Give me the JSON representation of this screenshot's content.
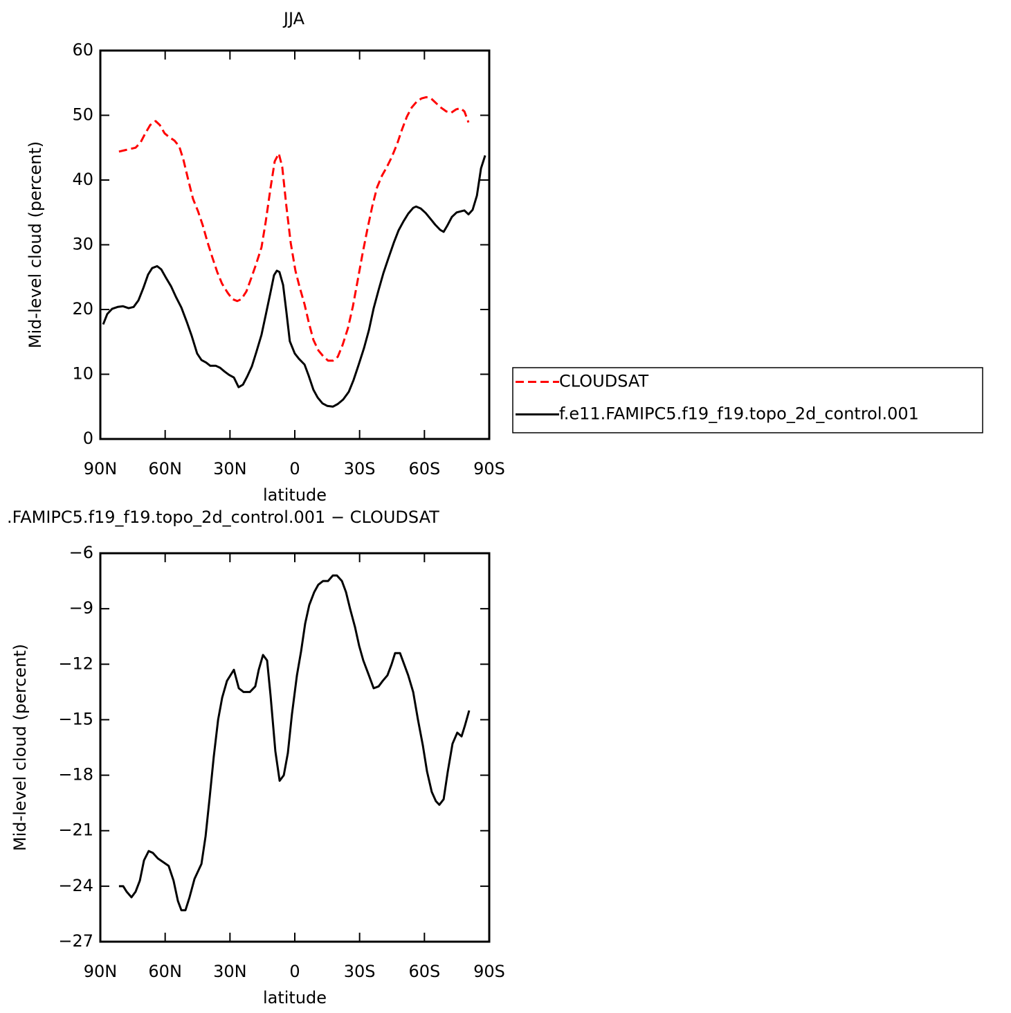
{
  "chart_data": [
    {
      "type": "line",
      "title": "JJA",
      "xlabel": "latitude",
      "ylabel": "Mid-level cloud (percent)",
      "xlim": [
        90,
        -90
      ],
      "ylim": [
        0,
        60
      ],
      "xticks": [
        {
          "value": 90,
          "label": "90N"
        },
        {
          "value": 60,
          "label": "60N"
        },
        {
          "value": 30,
          "label": "30N"
        },
        0,
        {
          "value": -30,
          "label": "30S"
        },
        {
          "value": -60,
          "label": "60S"
        },
        {
          "value": -90,
          "label": "90S"
        }
      ],
      "yticks": [
        0,
        10,
        20,
        30,
        40,
        50,
        60
      ],
      "legend": "right",
      "series": [
        {
          "name": "CLOUDSAT",
          "color": "#ff0000",
          "style": "dashed",
          "x": [
            81.4,
            78.8,
            76.2,
            73.7,
            71.4,
            69.2,
            66.9,
            64.4,
            62.5,
            60.2,
            58.0,
            55.7,
            53.5,
            51.6,
            49.3,
            47.1,
            44.8,
            42.6,
            40.4,
            38.2,
            35.9,
            33.7,
            31.1,
            28.9,
            26.6,
            24.7,
            22.4,
            20.2,
            17.9,
            15.4,
            13.5,
            11.2,
            9.3,
            7.4,
            5.8,
            3.9,
            1.9,
            -0.3,
            -2.2,
            -4.5,
            -6.4,
            -8.6,
            -10.9,
            -13.1,
            -15.4,
            -17.6,
            -19.9,
            -22.1,
            -24.6,
            -26.9,
            -29.1,
            -31.3,
            -33.6,
            -35.9,
            -38.1,
            -40.4,
            -42.6,
            -44.8,
            -47.4,
            -49.6,
            -51.9,
            -54.1,
            -56.4,
            -58.6,
            -60.9,
            -63.1,
            -65.3,
            -67.6,
            -70.1,
            -72.4,
            -74.6,
            -76.6,
            -78.5,
            -80.4
          ],
          "values": [
            44.4,
            44.6,
            44.8,
            45.0,
            45.8,
            47.2,
            48.5,
            49.1,
            48.5,
            47.2,
            46.6,
            46.1,
            45.2,
            43.2,
            40.0,
            37.1,
            35.2,
            33.0,
            30.4,
            28.1,
            25.8,
            24.0,
            22.6,
            21.6,
            21.3,
            21.6,
            22.8,
            24.8,
            27.0,
            29.6,
            33.5,
            38.8,
            42.9,
            44.1,
            42.0,
            36.0,
            30.3,
            26.0,
            23.5,
            20.8,
            18.1,
            15.3,
            13.7,
            12.8,
            12.1,
            12.1,
            12.7,
            14.5,
            17.1,
            20.5,
            24.5,
            28.5,
            32.4,
            36.0,
            38.9,
            40.7,
            42.0,
            43.5,
            45.6,
            47.8,
            49.8,
            51.2,
            52.1,
            52.6,
            52.8,
            52.6,
            51.9,
            51.2,
            50.6,
            50.4,
            50.9,
            51.1,
            50.6,
            48.9
          ]
        },
        {
          "name": "f.e11.FAMIPC5.f19_f19.topo_2d_control.001",
          "color": "#000000",
          "style": "solid",
          "x": [
            88.7,
            86.8,
            84.6,
            82.0,
            79.5,
            76.9,
            74.6,
            72.4,
            70.1,
            67.9,
            66.0,
            63.7,
            61.8,
            59.6,
            57.3,
            55.1,
            52.5,
            50.0,
            47.7,
            45.2,
            43.2,
            41.0,
            39.1,
            36.5,
            34.6,
            32.4,
            30.4,
            28.2,
            26.0,
            24.0,
            22.1,
            19.9,
            17.9,
            15.4,
            13.5,
            11.2,
            9.6,
            8.3,
            7.1,
            5.4,
            3.9,
            2.3,
            0.0,
            -1.9,
            -4.5,
            -6.4,
            -8.6,
            -10.6,
            -12.8,
            -15.1,
            -17.6,
            -19.9,
            -22.4,
            -25.0,
            -27.2,
            -29.5,
            -32.0,
            -34.3,
            -36.5,
            -38.8,
            -41.0,
            -43.2,
            -45.8,
            -48.0,
            -50.3,
            -52.5,
            -54.8,
            -56.1,
            -58.3,
            -60.6,
            -62.8,
            -65.0,
            -67.3,
            -68.9,
            -70.5,
            -72.7,
            -74.9,
            -77.2,
            -78.5,
            -80.4,
            -82.3,
            -84.3,
            -86.2,
            -88.1
          ],
          "values": [
            17.7,
            19.3,
            20.1,
            20.4,
            20.5,
            20.2,
            20.4,
            21.4,
            23.3,
            25.4,
            26.4,
            26.7,
            26.2,
            24.9,
            23.6,
            22.0,
            20.3,
            18.1,
            15.9,
            13.2,
            12.2,
            11.8,
            11.3,
            11.3,
            11.0,
            10.4,
            9.9,
            9.5,
            8.0,
            8.4,
            9.6,
            11.2,
            13.3,
            16.1,
            19.1,
            22.7,
            25.3,
            26.0,
            25.8,
            23.8,
            19.7,
            15.1,
            13.2,
            12.4,
            11.5,
            9.8,
            7.6,
            6.4,
            5.5,
            5.1,
            5.0,
            5.4,
            6.1,
            7.3,
            9.1,
            11.4,
            14.0,
            16.8,
            20.2,
            23.0,
            25.6,
            27.8,
            30.3,
            32.2,
            33.6,
            34.8,
            35.7,
            35.9,
            35.6,
            34.9,
            34.0,
            33.1,
            32.3,
            32.0,
            32.9,
            34.3,
            35.0,
            35.2,
            35.3,
            34.7,
            35.4,
            37.6,
            41.8,
            43.8
          ]
        }
      ]
    },
    {
      "type": "line",
      "title": ".FAMIPC5.f19_f19.topo_2d_control.001 − CLOUDSAT",
      "xlabel": "latitude",
      "ylabel": "Mid-level cloud (percent)",
      "xlim": [
        90,
        -90
      ],
      "ylim": [
        -27,
        -6
      ],
      "xticks": [
        {
          "value": 90,
          "label": "90N"
        },
        {
          "value": 60,
          "label": "60N"
        },
        {
          "value": 30,
          "label": "30N"
        },
        0,
        {
          "value": -30,
          "label": "30S"
        },
        {
          "value": -60,
          "label": "60S"
        },
        {
          "value": -90,
          "label": "90S"
        }
      ],
      "yticks": [
        {
          "value": -27,
          "label": "−27"
        },
        {
          "value": -24,
          "label": "−24"
        },
        {
          "value": -21,
          "label": "−21"
        },
        {
          "value": -18,
          "label": "−18"
        },
        {
          "value": -15,
          "label": "−15"
        },
        {
          "value": -12,
          "label": "−12"
        },
        {
          "value": -9,
          "label": "−9"
        },
        {
          "value": -6,
          "label": "−6"
        }
      ],
      "series": [
        {
          "color": "#000000",
          "style": "solid",
          "x": [
            81.4,
            79.4,
            77.8,
            75.6,
            73.7,
            71.7,
            69.8,
            67.6,
            65.7,
            63.4,
            60.9,
            58.4,
            56.1,
            54.1,
            52.5,
            50.6,
            48.7,
            46.4,
            43.2,
            41.3,
            39.4,
            37.5,
            35.5,
            33.6,
            31.4,
            28.2,
            25.9,
            23.7,
            20.8,
            18.3,
            16.7,
            14.7,
            12.8,
            11.2,
            9.0,
            7.0,
            5.1,
            3.2,
            1.3,
            -1.0,
            -2.9,
            -4.8,
            -6.7,
            -9.0,
            -10.9,
            -13.1,
            -15.4,
            -17.6,
            -19.5,
            -21.8,
            -23.7,
            -25.6,
            -27.9,
            -29.8,
            -31.7,
            -34.3,
            -36.5,
            -38.8,
            -40.7,
            -42.9,
            -44.8,
            -46.4,
            -48.7,
            -50.6,
            -52.5,
            -54.8,
            -57.0,
            -59.3,
            -61.2,
            -63.4,
            -65.3,
            -66.9,
            -68.9,
            -70.8,
            -73.0,
            -75.2,
            -77.2,
            -78.8,
            -80.7
          ],
          "values": [
            -24.0,
            -24.0,
            -24.3,
            -24.6,
            -24.3,
            -23.7,
            -22.6,
            -22.1,
            -22.2,
            -22.5,
            -22.7,
            -22.9,
            -23.7,
            -24.8,
            -25.3,
            -25.3,
            -24.6,
            -23.6,
            -22.8,
            -21.3,
            -19.2,
            -17.0,
            -15.0,
            -13.8,
            -12.9,
            -12.3,
            -13.3,
            -13.5,
            -13.5,
            -13.2,
            -12.3,
            -11.5,
            -11.8,
            -13.7,
            -16.7,
            -18.3,
            -18.0,
            -16.8,
            -14.7,
            -12.6,
            -11.3,
            -9.8,
            -8.8,
            -8.1,
            -7.7,
            -7.5,
            -7.5,
            -7.2,
            -7.2,
            -7.5,
            -8.1,
            -9.0,
            -10.0,
            -11.0,
            -11.8,
            -12.6,
            -13.3,
            -13.2,
            -12.9,
            -12.6,
            -12.0,
            -11.4,
            -11.4,
            -12.0,
            -12.6,
            -13.5,
            -15.0,
            -16.4,
            -17.8,
            -18.9,
            -19.4,
            -19.6,
            -19.3,
            -17.8,
            -16.3,
            -15.7,
            -15.9,
            -15.3,
            -14.5
          ]
        }
      ]
    }
  ]
}
